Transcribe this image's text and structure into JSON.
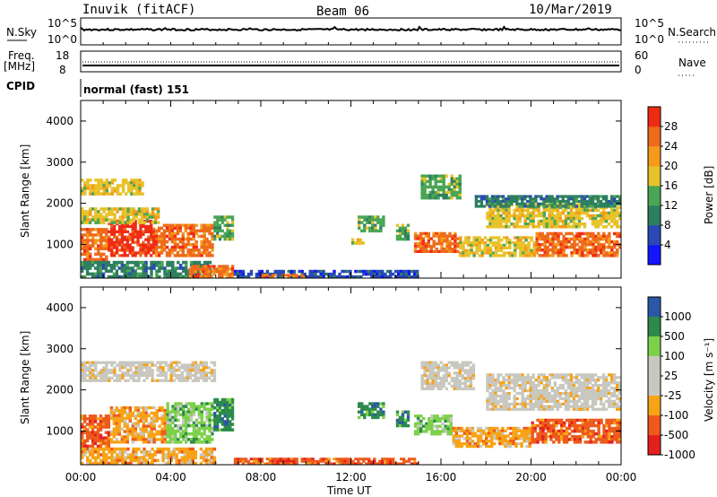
{
  "header": {
    "station": "Inuvik (fitACF)",
    "beam": "Beam 06",
    "date": "10/Mar/2019"
  },
  "status_panels": {
    "nsky_label": "N.Sky",
    "nsky_ticks": [
      "10^5",
      "10^0"
    ],
    "nsearch_label": "N.Search",
    "nsearch_ticks": [
      "10^5",
      "10^0"
    ],
    "freq_label_1": "Freq.",
    "freq_label_2": "[MHz]",
    "freq_ticks": [
      "18",
      "8"
    ],
    "nave_label": "Nave",
    "nave_ticks": [
      "60",
      "0"
    ],
    "cpid_label": "CPID",
    "cpid_value": "normal (fast) 151"
  },
  "x_axis": {
    "ticks": [
      "00:00",
      "04:00",
      "08:00",
      "12:00",
      "16:00",
      "20:00",
      "00:00"
    ],
    "label": "Time UT",
    "range_hours": [
      0,
      24
    ]
  },
  "colors": {
    "power": [
      "#1414ff",
      "#2a49b7",
      "#2e7f60",
      "#4aa655",
      "#e8c22b",
      "#f59a1c",
      "#ef6a1b",
      "#f02b14"
    ],
    "velocity": [
      "#e4201f",
      "#ee5a1d",
      "#f7a316",
      "#c8c8c0",
      "#c8c8c0",
      "#7cd149",
      "#2d8a4c",
      "#2c57a9"
    ]
  },
  "chart_data": [
    {
      "type": "heatmap",
      "name": "power",
      "ylabel": "Slant Range [km]",
      "yticks": [
        "1000",
        "2000",
        "3000",
        "4000"
      ],
      "ylim": [
        180,
        4500
      ],
      "xlim": [
        0,
        24
      ],
      "colorbar_label": "Power [dB]",
      "colorbar_ticks": [
        "4",
        "8",
        "12",
        "16",
        "20",
        "24",
        "28"
      ],
      "colorbar_range": [
        0,
        32
      ],
      "blobs": [
        {
          "x0": 0.0,
          "x1": 1.2,
          "y0": 600,
          "y1": 1400,
          "v": 26
        },
        {
          "x0": 1.2,
          "x1": 3.3,
          "y0": 700,
          "y1": 1600,
          "v": 28
        },
        {
          "x0": 3.3,
          "x1": 5.9,
          "y0": 700,
          "y1": 1500,
          "v": 24
        },
        {
          "x0": 5.9,
          "x1": 6.8,
          "y0": 1100,
          "y1": 1700,
          "v": 14
        },
        {
          "x0": 0.0,
          "x1": 3.5,
          "y0": 1500,
          "y1": 1900,
          "v": 17
        },
        {
          "x0": 0.0,
          "x1": 2.8,
          "y0": 2200,
          "y1": 2600,
          "v": 19
        },
        {
          "x0": 0.0,
          "x1": 5.8,
          "y0": 180,
          "y1": 600,
          "v": 9
        },
        {
          "x0": 4.8,
          "x1": 6.8,
          "y0": 180,
          "y1": 500,
          "v": 27
        },
        {
          "x0": 6.8,
          "x1": 15.0,
          "y0": 180,
          "y1": 380,
          "v": 6
        },
        {
          "x0": 8.0,
          "x1": 10.0,
          "y0": 180,
          "y1": 280,
          "v": 26
        },
        {
          "x0": 12.3,
          "x1": 13.5,
          "y0": 1300,
          "y1": 1700,
          "v": 12
        },
        {
          "x0": 11.9,
          "x1": 12.6,
          "y0": 1000,
          "y1": 1150,
          "v": 18
        },
        {
          "x0": 14.0,
          "x1": 14.6,
          "y0": 1100,
          "y1": 1500,
          "v": 12
        },
        {
          "x0": 15.1,
          "x1": 16.9,
          "y0": 2100,
          "y1": 2700,
          "v": 13
        },
        {
          "x0": 14.8,
          "x1": 16.8,
          "y0": 800,
          "y1": 1300,
          "v": 26
        },
        {
          "x0": 16.8,
          "x1": 20.2,
          "y0": 700,
          "y1": 1200,
          "v": 17
        },
        {
          "x0": 20.2,
          "x1": 24.0,
          "y0": 700,
          "y1": 1300,
          "v": 27
        },
        {
          "x0": 18.0,
          "x1": 24.0,
          "y0": 1400,
          "y1": 2000,
          "v": 17
        },
        {
          "x0": 17.5,
          "x1": 24.0,
          "y0": 1900,
          "y1": 2200,
          "v": 9
        }
      ]
    },
    {
      "type": "heatmap",
      "name": "velocity",
      "ylabel": "Slant Range [km]",
      "yticks": [
        "1000",
        "2000",
        "3000",
        "4000"
      ],
      "ylim": [
        180,
        4500
      ],
      "xlim": [
        0,
        24
      ],
      "colorbar_label": "Velocity [m s⁻¹]",
      "colorbar_ticks": [
        "1000",
        "500",
        "100",
        "25",
        "-25",
        "-100",
        "-500",
        "-1000"
      ],
      "blobs": [
        {
          "x0": 0.0,
          "x1": 1.3,
          "y0": 600,
          "y1": 1400,
          "c": 1
        },
        {
          "x0": 1.3,
          "x1": 3.8,
          "y0": 700,
          "y1": 1600,
          "c": 2
        },
        {
          "x0": 3.8,
          "x1": 5.9,
          "y0": 700,
          "y1": 1700,
          "c": 5
        },
        {
          "x0": 5.9,
          "x1": 6.8,
          "y0": 1000,
          "y1": 1800,
          "c": 6
        },
        {
          "x0": 0.0,
          "x1": 6.0,
          "y0": 2200,
          "y1": 2700,
          "c": 3
        },
        {
          "x0": 0.0,
          "x1": 6.0,
          "y0": 180,
          "y1": 600,
          "c": 2
        },
        {
          "x0": 6.8,
          "x1": 15.0,
          "y0": 180,
          "y1": 350,
          "c": 1
        },
        {
          "x0": 12.3,
          "x1": 13.5,
          "y0": 1300,
          "y1": 1700,
          "c": 6
        },
        {
          "x0": 14.0,
          "x1": 14.6,
          "y0": 1100,
          "y1": 1500,
          "c": 6
        },
        {
          "x0": 15.1,
          "x1": 17.5,
          "y0": 2000,
          "y1": 2700,
          "c": 3
        },
        {
          "x0": 14.8,
          "x1": 16.5,
          "y0": 900,
          "y1": 1400,
          "c": 5
        },
        {
          "x0": 16.5,
          "x1": 20.0,
          "y0": 600,
          "y1": 1100,
          "c": 2
        },
        {
          "x0": 20.0,
          "x1": 24.0,
          "y0": 700,
          "y1": 1300,
          "c": 1
        },
        {
          "x0": 18.0,
          "x1": 24.0,
          "y0": 1500,
          "y1": 2400,
          "c": 3
        }
      ]
    }
  ]
}
